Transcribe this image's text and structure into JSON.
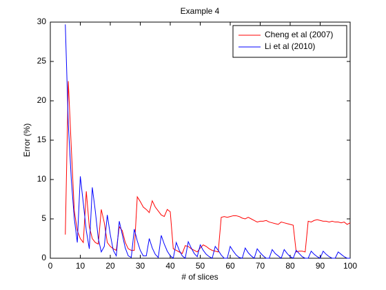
{
  "chart_data": {
    "type": "line",
    "title": "Example 4",
    "xlabel": "# of slices",
    "ylabel": "Error (%)",
    "x": [
      5,
      6,
      7,
      8,
      9,
      10,
      11,
      12,
      13,
      14,
      15,
      16,
      17,
      18,
      19,
      20,
      21,
      22,
      23,
      24,
      25,
      26,
      27,
      28,
      29,
      30,
      31,
      32,
      33,
      34,
      35,
      36,
      37,
      38,
      39,
      40,
      41,
      42,
      43,
      44,
      45,
      46,
      47,
      48,
      49,
      50,
      51,
      52,
      53,
      54,
      55,
      56,
      57,
      58,
      59,
      60,
      61,
      62,
      63,
      64,
      65,
      66,
      67,
      68,
      69,
      70,
      71,
      72,
      73,
      74,
      75,
      76,
      77,
      78,
      79,
      80,
      81,
      82,
      83,
      84,
      85,
      86,
      87,
      88,
      89,
      90,
      91,
      92,
      93,
      94,
      95,
      96,
      97,
      98,
      99,
      100
    ],
    "series": [
      {
        "name": "Cheng et al (2007)",
        "color": "#ff0000",
        "values": [
          3,
          22.5,
          14,
          6,
          3.5,
          2.5,
          2,
          8.5,
          4,
          2.5,
          2,
          1.8,
          6.2,
          4.5,
          2,
          1.5,
          1.2,
          1,
          4,
          3.5,
          2,
          1.2,
          1,
          1,
          7.8,
          7.2,
          6.5,
          6.2,
          5.8,
          7.3,
          6.5,
          6,
          5.5,
          5.3,
          6.2,
          5.9,
          1.2,
          1,
          0.8,
          0.6,
          1.6,
          1.5,
          1.2,
          1,
          0.8,
          1.3,
          1.7,
          1.5,
          1.2,
          1,
          0.9,
          0.8,
          5.2,
          5.3,
          5.2,
          5.3,
          5.4,
          5.4,
          5.3,
          5.1,
          5,
          5.2,
          5,
          4.8,
          4.6,
          4.7,
          4.7,
          4.8,
          4.6,
          4.5,
          4.4,
          4.3,
          4.6,
          4.5,
          4.4,
          4.3,
          4.2,
          0.8,
          0.9,
          0.9,
          0.8,
          4.7,
          4.6,
          4.8,
          4.9,
          4.8,
          4.7,
          4.7,
          4.6,
          4.7,
          4.6,
          4.6,
          4.5,
          4.6,
          4.3,
          4.5
        ]
      },
      {
        "name": "Li et al (2010)",
        "color": "#0000ff",
        "values": [
          29.7,
          17,
          10,
          5,
          2,
          10.4,
          7,
          3.5,
          1.2,
          9,
          6,
          2.5,
          0.8,
          1.5,
          5.5,
          3,
          1,
          0.3,
          4.7,
          3,
          1.3,
          0.3,
          0.1,
          3.7,
          2.2,
          1,
          0.3,
          0.3,
          2.5,
          1.3,
          0.5,
          0.1,
          2.9,
          1.8,
          0.9,
          0.3,
          0,
          2,
          1,
          0.3,
          0,
          2.1,
          1.3,
          0.6,
          0.2,
          1.7,
          1,
          0.5,
          0.2,
          0,
          1.5,
          1,
          0.4,
          0,
          0,
          1.5,
          0.9,
          0.4,
          0.1,
          0,
          1.3,
          0.7,
          0.3,
          0,
          1.2,
          0.7,
          0.3,
          0,
          0,
          1.1,
          0.6,
          0.3,
          0,
          1.1,
          0.6,
          0.2,
          0,
          1,
          0.6,
          0.2,
          0,
          0,
          0.9,
          0.5,
          0.2,
          0,
          0.9,
          0.5,
          0.2,
          0,
          0,
          0.8,
          0.5,
          0.2,
          0,
          0
        ]
      }
    ],
    "xlim": [
      0,
      100
    ],
    "xticks": [
      0,
      10,
      20,
      30,
      40,
      50,
      60,
      70,
      80,
      90,
      100
    ],
    "ylim": [
      0,
      30
    ],
    "yticks": [
      0,
      5,
      10,
      15,
      20,
      25,
      30
    ],
    "grid": false,
    "legend": "northeast"
  }
}
